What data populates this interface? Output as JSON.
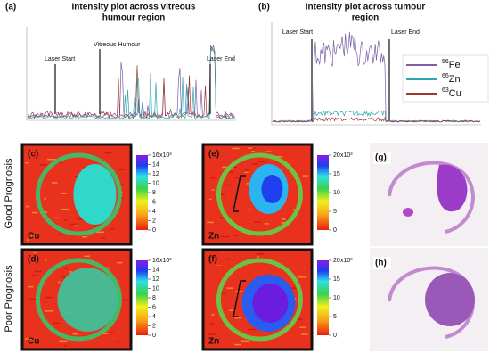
{
  "panels": {
    "a": {
      "label": "(a)",
      "title_lines": [
        "Intensity plot across vitreous",
        "humour region"
      ],
      "annotations": [
        "Laser Start",
        "Vitreous Humour",
        "Laser End"
      ]
    },
    "b": {
      "label": "(b)",
      "title_lines": [
        "Intensity plot across tumour",
        "region"
      ],
      "annotations": [
        "Laser Start",
        "Laser End"
      ],
      "legend": [
        {
          "mass": "56",
          "element": "Fe",
          "color": "#7b5fa8"
        },
        {
          "mass": "66",
          "element": "Zn",
          "color": "#2fa5b0"
        },
        {
          "mass": "63",
          "element": "Cu",
          "color": "#a0342e"
        }
      ]
    }
  },
  "rows": [
    "Good Prognosis",
    "Poor Prognosis"
  ],
  "maps": [
    {
      "label": "(c)",
      "element": "Cu",
      "scale": "cu"
    },
    {
      "label": "(d)",
      "element": "Cu",
      "scale": "cu"
    },
    {
      "label": "(e)",
      "element": "Zn",
      "scale": "zn"
    },
    {
      "label": "(f)",
      "element": "Zn",
      "scale": "zn"
    }
  ],
  "histology": [
    "(g)",
    "(h)"
  ],
  "colorbars": {
    "cu": {
      "ticks": [
        0,
        2,
        4,
        6,
        8,
        10,
        12,
        14,
        16
      ],
      "multiplier": "x10³"
    },
    "zn": {
      "ticks": [
        0,
        5,
        10,
        15,
        20
      ],
      "multiplier": "x10³"
    }
  }
}
